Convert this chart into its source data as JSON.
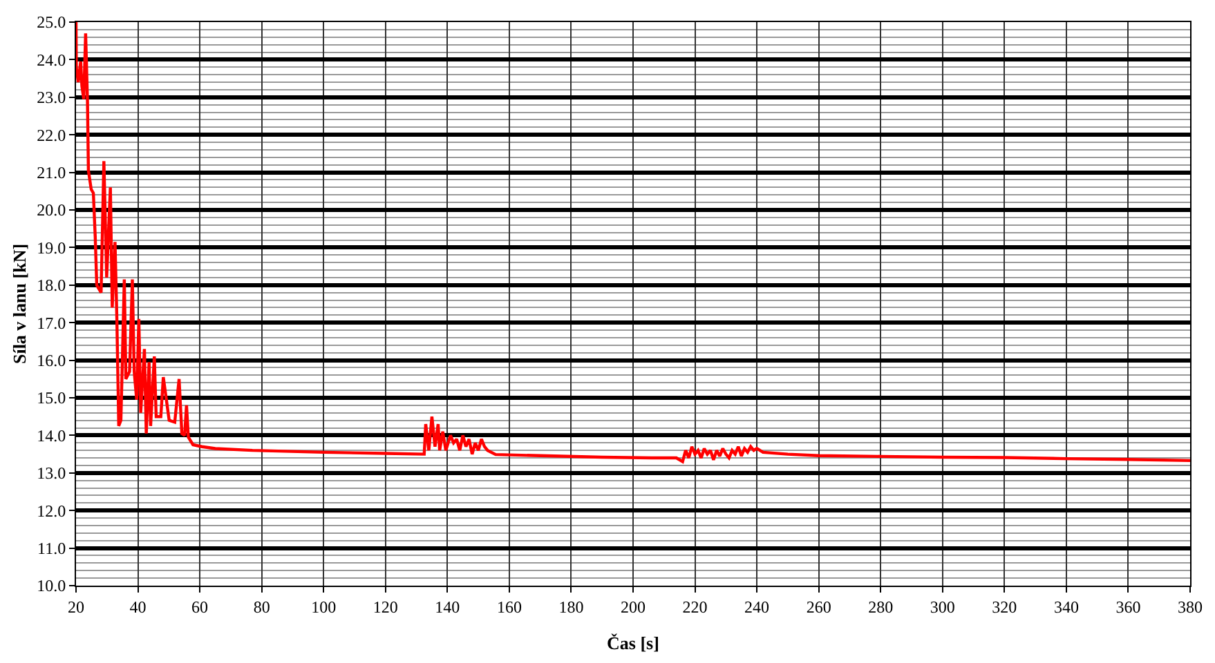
{
  "chart_data": {
    "type": "line",
    "xlabel": "Čas [s]",
    "ylabel": "Síla v lanu [kN]",
    "series": [
      {
        "color": "#ff0000",
        "x": [
          20,
          20.1,
          20.7,
          21.5,
          21.9,
          22.5,
          23.1,
          23.7,
          24.0,
          24.9,
          25.6,
          26.2,
          26.7,
          28.1,
          29.0,
          29.9,
          31.1,
          31.7,
          32.6,
          33.2,
          33.8,
          34.5,
          35.6,
          36.1,
          37.3,
          38.2,
          38.8,
          39.6,
          40.3,
          40.9,
          42.1,
          42.7,
          43.6,
          44.1,
          45.3,
          45.9,
          47.4,
          48.2,
          50.1,
          51.9,
          53.3,
          54.2,
          55.1,
          55.7,
          56.3,
          57.8,
          60.7,
          65,
          77,
          100,
          120,
          132.5,
          133,
          134,
          135,
          136,
          137,
          137.5,
          138.5,
          139.5,
          141,
          142,
          143,
          144,
          145,
          146,
          147,
          148,
          149,
          150,
          151,
          152,
          153,
          155.6,
          170,
          190,
          206,
          214,
          216,
          217,
          218,
          219,
          220,
          221,
          222,
          223,
          224,
          225,
          226,
          227,
          228,
          229,
          230,
          231,
          232,
          233,
          234,
          235,
          236,
          237,
          238,
          239,
          240,
          242,
          250,
          260,
          280,
          300,
          320,
          340,
          360,
          380
        ],
        "values": [
          25.0,
          23.8,
          23.4,
          23.95,
          23.3,
          22.95,
          24.7,
          22.9,
          21.05,
          20.55,
          20.45,
          19.3,
          18.0,
          17.8,
          21.3,
          18.2,
          20.6,
          17.4,
          19.15,
          17.1,
          14.25,
          14.4,
          18.15,
          15.5,
          15.7,
          18.15,
          15.7,
          14.95,
          17.1,
          14.6,
          16.3,
          14.05,
          15.95,
          14.25,
          16.1,
          14.5,
          14.5,
          15.55,
          14.4,
          14.35,
          15.5,
          14.05,
          14.0,
          14.8,
          13.95,
          13.75,
          13.7,
          13.65,
          13.6,
          13.55,
          13.52,
          13.5,
          14.3,
          13.6,
          14.5,
          13.7,
          14.3,
          13.6,
          14.1,
          13.6,
          14.0,
          13.8,
          13.9,
          13.6,
          14.0,
          13.7,
          13.9,
          13.5,
          13.8,
          13.6,
          13.9,
          13.7,
          13.6,
          13.49,
          13.46,
          13.42,
          13.4,
          13.4,
          13.3,
          13.6,
          13.4,
          13.7,
          13.5,
          13.6,
          13.4,
          13.65,
          13.5,
          13.6,
          13.35,
          13.6,
          13.45,
          13.65,
          13.5,
          13.4,
          13.6,
          13.5,
          13.7,
          13.45,
          13.65,
          13.55,
          13.7,
          13.6,
          13.65,
          13.55,
          13.5,
          13.46,
          13.44,
          13.42,
          13.41,
          13.38,
          13.36,
          13.33
        ]
      }
    ],
    "xlim": [
      20,
      380
    ],
    "xticks": [
      20,
      40,
      60,
      80,
      100,
      120,
      140,
      160,
      180,
      200,
      220,
      240,
      260,
      280,
      300,
      320,
      340,
      360,
      380
    ],
    "ylim": [
      10,
      25
    ],
    "yticks": [
      {
        "value": 10,
        "label": "10.0"
      },
      {
        "value": 11,
        "label": "11.0"
      },
      {
        "value": 12,
        "label": "12.0"
      },
      {
        "value": 13,
        "label": "13.0"
      },
      {
        "value": 14,
        "label": "14.0"
      },
      {
        "value": 15,
        "label": "15.0"
      },
      {
        "value": 16,
        "label": "16.0"
      },
      {
        "value": 17,
        "label": "17.0"
      },
      {
        "value": 18,
        "label": "18.0"
      },
      {
        "value": 19,
        "label": "19.0"
      },
      {
        "value": 20,
        "label": "20.0"
      },
      {
        "value": 21,
        "label": "21.0"
      },
      {
        "value": 22,
        "label": "22.0"
      },
      {
        "value": 23,
        "label": "23.0"
      },
      {
        "value": 24,
        "label": "24.0"
      },
      {
        "value": 25,
        "label": "25.0"
      }
    ],
    "grid": true,
    "marker": "none",
    "line_style": "solid"
  }
}
